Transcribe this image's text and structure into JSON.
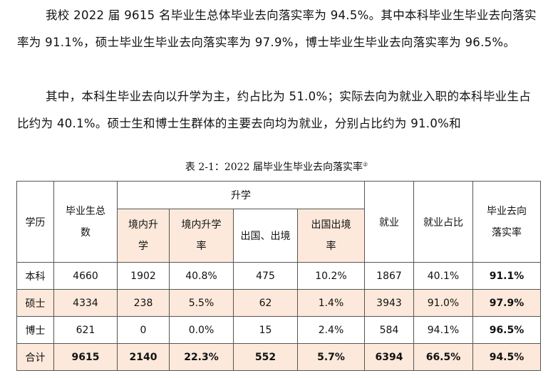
{
  "paragraphs": [
    "我校 2022 届 9615 名毕业生总体毕业去向落实率为 94.5%。其中本科毕业生毕业去向落实率为 91.1%，硕士毕业生毕业去向落实率为 97.9%，博士毕业生毕业去向落实率为 96.5%。",
    "其中，本科生毕业去向以升学为主，约占比为 51.0%；实际去向为就业入职的本科毕业生占比约为 40.1%。硕士生和博士生群体的主要去向均为就业，分别占比约为 91.0%和"
  ],
  "caption": "表 2-1：2022 届毕业生毕业去向落实率",
  "caption_note": "②",
  "table": {
    "headers": {
      "degree": "学历",
      "total": "毕业生总数",
      "further": "升学",
      "domestic": "境内升学",
      "domestic_rate": "境内升学率",
      "abroad": "出国、出境",
      "abroad_rate": "出国出境率",
      "employed": "就业",
      "employed_rate": "就业占比",
      "placement_rate": "毕业去向落实率"
    },
    "rows": [
      [
        "本科",
        "4660",
        "1902",
        "40.8%",
        "475",
        "10.2%",
        "1867",
        "40.1%",
        "91.1%"
      ],
      [
        "硕士",
        "4334",
        "238",
        "5.5%",
        "62",
        "1.4%",
        "3943",
        "91.0%",
        "97.9%"
      ],
      [
        "博士",
        "621",
        "0",
        "0.0%",
        "15",
        "2.4%",
        "584",
        "94.1%",
        "96.5%"
      ],
      [
        "合计",
        "9615",
        "2140",
        "22.3%",
        "552",
        "5.7%",
        "6394",
        "66.5%",
        "94.5%"
      ]
    ]
  },
  "colors": {
    "highlight": "#fde9db",
    "border": "#555555"
  }
}
